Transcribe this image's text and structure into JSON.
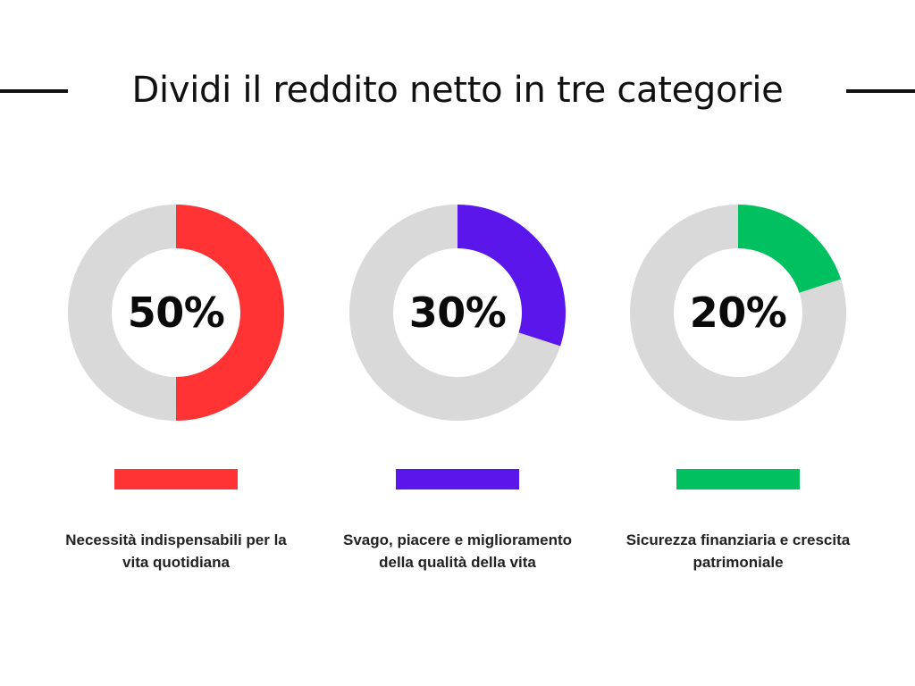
{
  "title": "Dividi il reddito netto in tre categorie",
  "colors": {
    "track": "#d9d9d9",
    "background": "#ffffff",
    "text": "#111111"
  },
  "chart_data": {
    "type": "pie",
    "variant": "donut",
    "title": "Dividi il reddito netto in tre categorie",
    "categories": [
      {
        "value": 50,
        "label": "50%",
        "color": "#ff3333",
        "description": "Necessità indispensabili per la vita quotidiana"
      },
      {
        "value": 30,
        "label": "30%",
        "color": "#5b17eb",
        "description": "Svago, piacere e miglioramento della qualità della vita"
      },
      {
        "value": 20,
        "label": "20%",
        "color": "#00c060",
        "description": "Sicurezza finanziaria e crescita patrimoniale"
      }
    ]
  }
}
